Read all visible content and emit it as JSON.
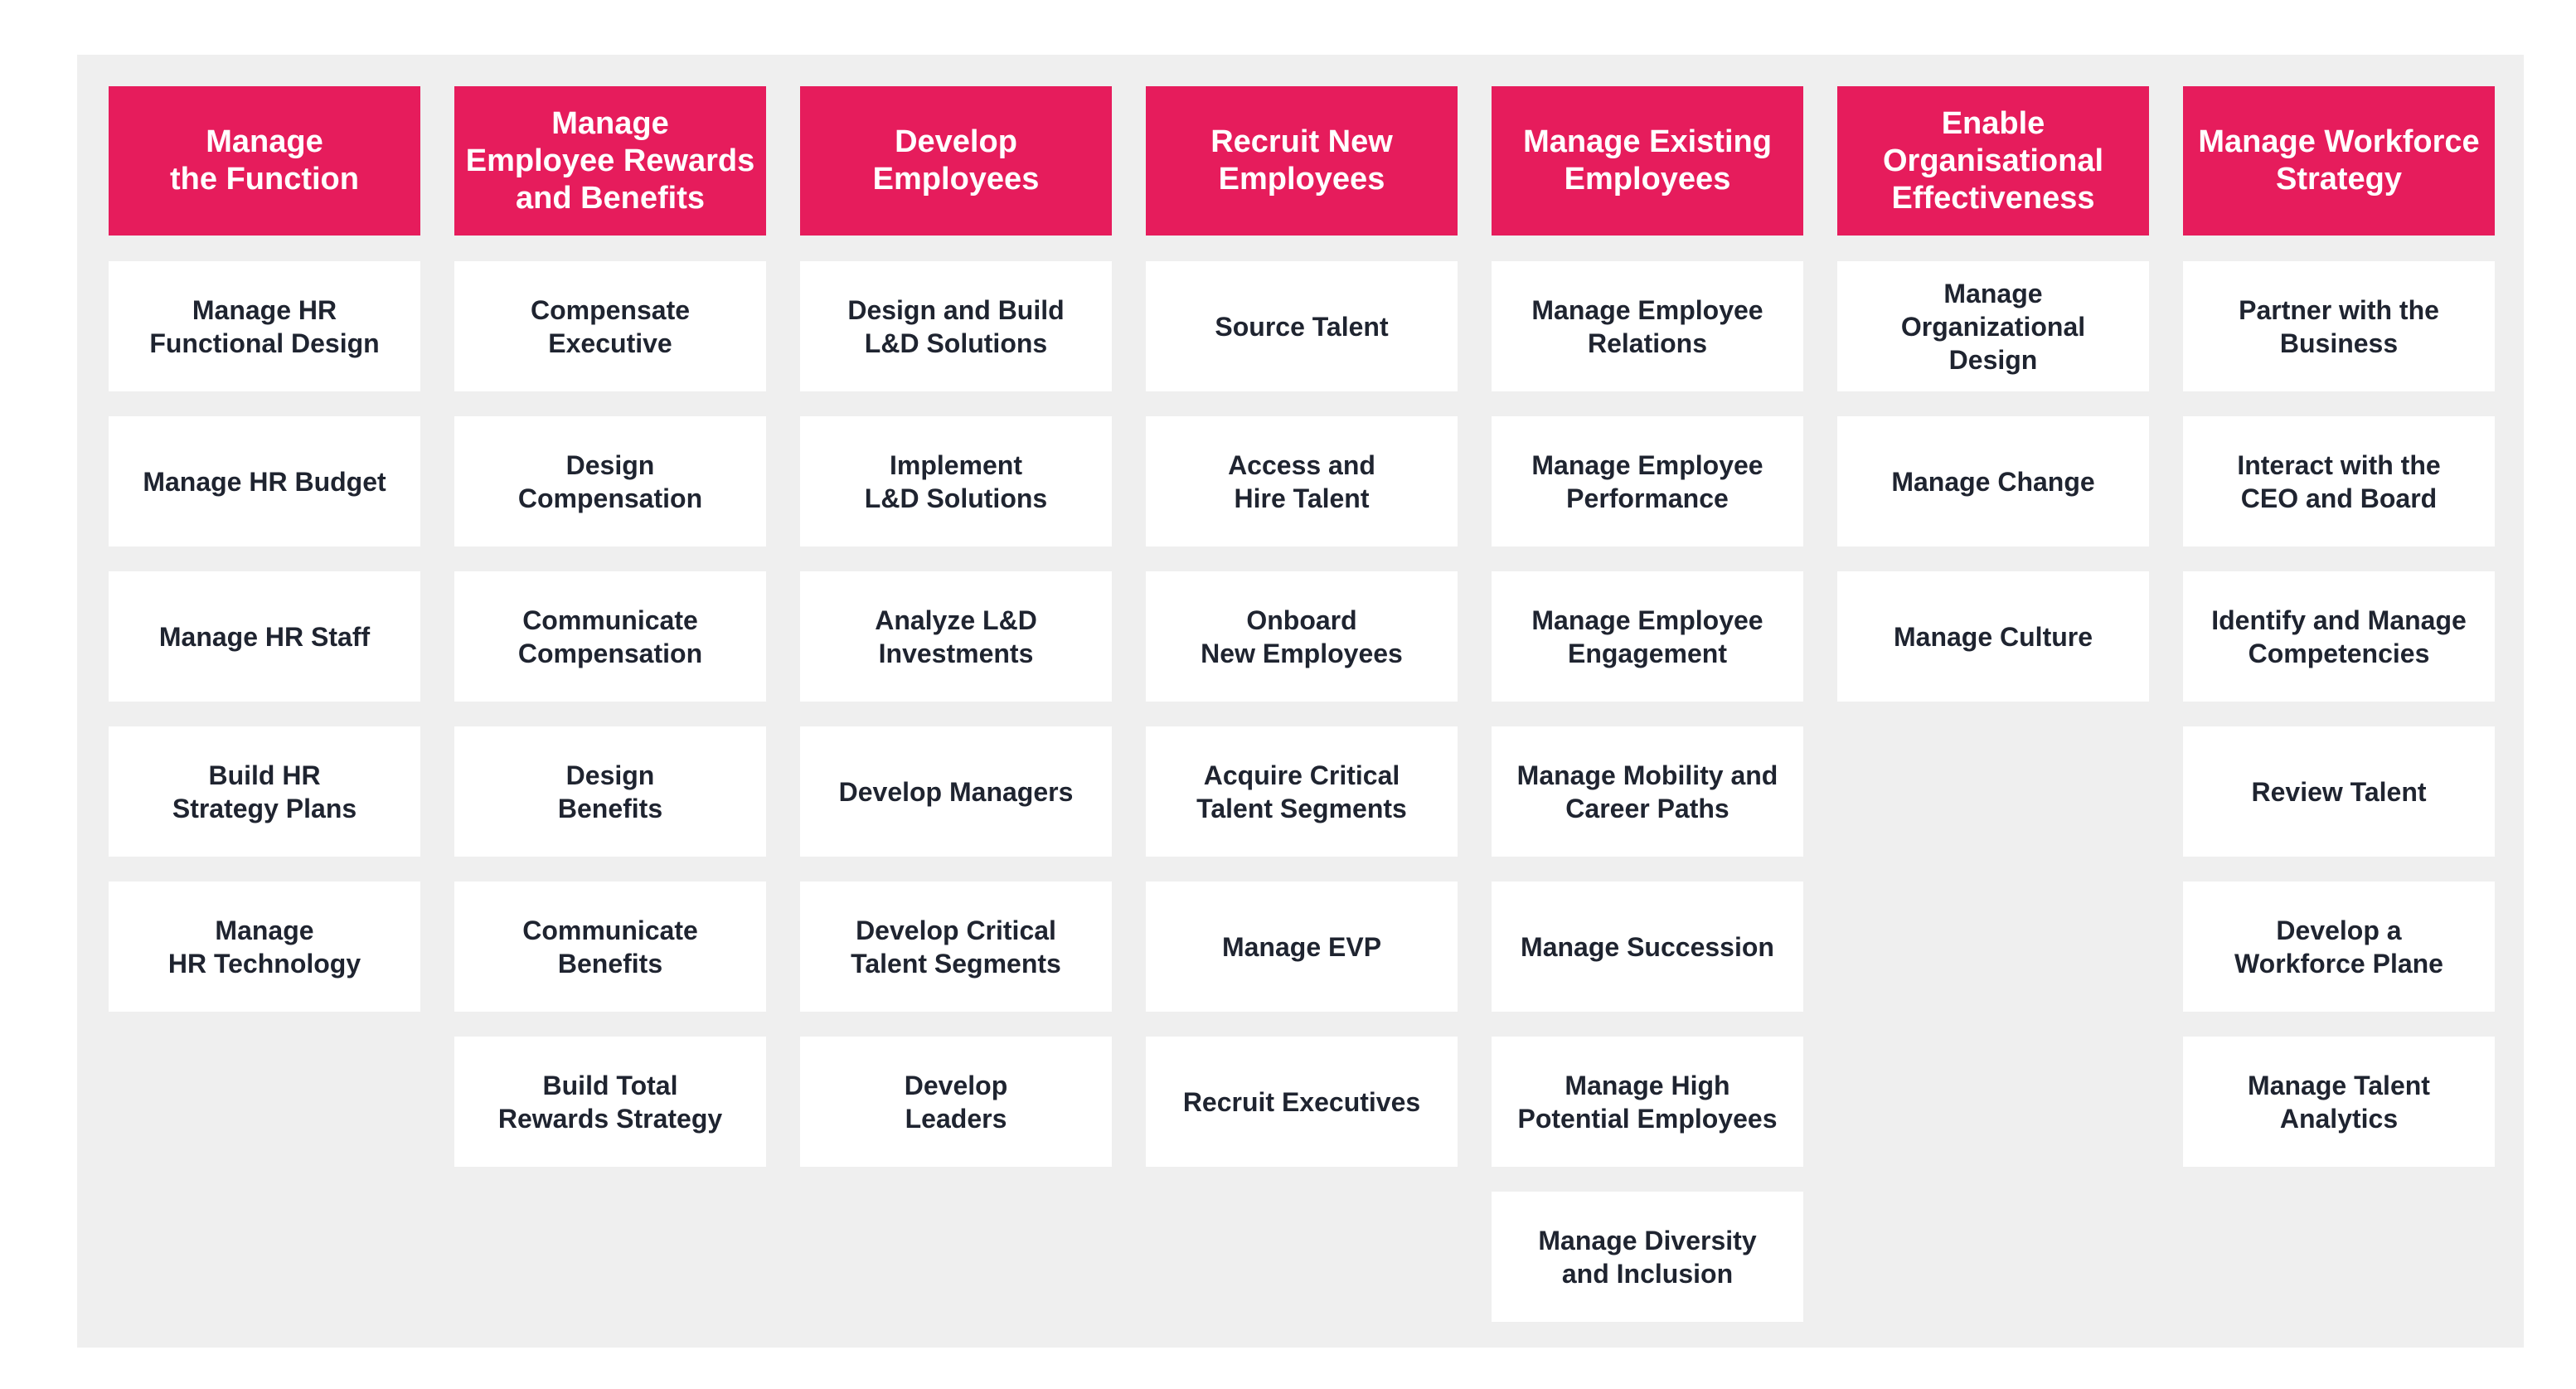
{
  "colors": {
    "header_bg": "#e61c5c",
    "header_text": "#ffffff",
    "panel_bg": "#efefef",
    "card_bg": "#ffffff",
    "card_text": "#1f2430"
  },
  "columns": [
    {
      "header": "Manage\nthe Function",
      "items": [
        "Manage HR\nFunctional Design",
        "Manage HR Budget",
        "Manage HR Staff",
        "Build HR\nStrategy Plans",
        "Manage\nHR Technology"
      ]
    },
    {
      "header": "Manage\nEmployee Rewards\nand Benefits",
      "items": [
        "Compensate\nExecutive",
        "Design\nCompensation",
        "Communicate\nCompensation",
        "Design\nBenefits",
        "Communicate\nBenefits",
        "Build Total\nRewards Strategy"
      ]
    },
    {
      "header": "Develop\nEmployees",
      "items": [
        "Design and Build\nL&D Solutions",
        "Implement\nL&D Solutions",
        "Analyze L&D\nInvestments",
        "Develop Managers",
        "Develop Critical\nTalent Segments",
        "Develop\nLeaders"
      ]
    },
    {
      "header": "Recruit New\nEmployees",
      "items": [
        "Source Talent",
        "Access and\nHire Talent",
        "Onboard\nNew Employees",
        "Acquire Critical\nTalent Segments",
        "Manage EVP",
        "Recruit Executives"
      ]
    },
    {
      "header": "Manage Existing\nEmployees",
      "items": [
        "Manage Employee\nRelations",
        "Manage Employee\nPerformance",
        "Manage Employee\nEngagement",
        "Manage Mobility and\nCareer Paths",
        "Manage Succession",
        "Manage High\nPotential Employees",
        "Manage Diversity\nand Inclusion"
      ]
    },
    {
      "header": "Enable\nOrganisational\nEffectiveness",
      "items": [
        "Manage\nOrganizational\nDesign",
        "Manage Change",
        "Manage Culture"
      ]
    },
    {
      "header": "Manage Workforce\nStrategy",
      "items": [
        "Partner with the\nBusiness",
        "Interact with the\nCEO and Board",
        "Identify and Manage\nCompetencies",
        "Review Talent",
        "Develop a\nWorkforce Plane",
        "Manage Talent\nAnalytics"
      ]
    }
  ]
}
